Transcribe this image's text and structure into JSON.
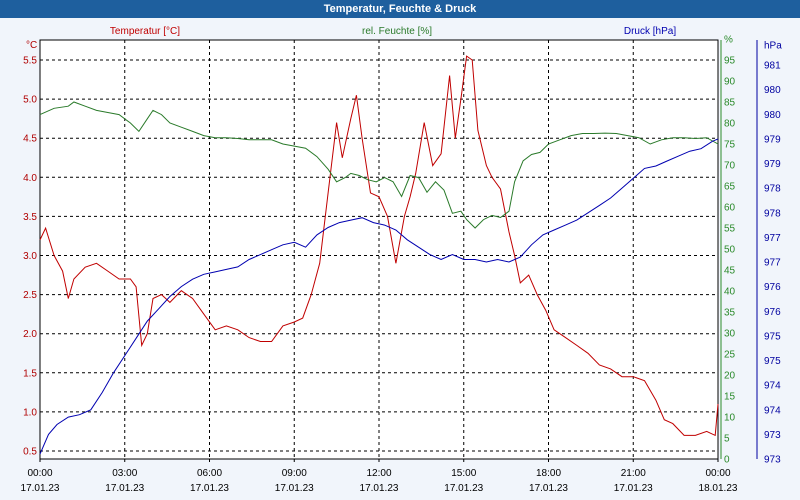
{
  "chart_data": {
    "type": "line",
    "title": "Temperatur, Feuchte & Druck",
    "x_ticks": [
      {
        "time": "00:00",
        "date": "17.01.23"
      },
      {
        "time": "03:00",
        "date": "17.01.23"
      },
      {
        "time": "06:00",
        "date": "17.01.23"
      },
      {
        "time": "09:00",
        "date": "17.01.23"
      },
      {
        "time": "12:00",
        "date": "17.01.23"
      },
      {
        "time": "15:00",
        "date": "17.01.23"
      },
      {
        "time": "18:00",
        "date": "17.01.23"
      },
      {
        "time": "21:00",
        "date": "17.01.23"
      },
      {
        "time": "00:00",
        "date": "18.01.23"
      }
    ],
    "x_range_hours": [
      0,
      24
    ],
    "axes": {
      "left": {
        "unit": "°C",
        "range": [
          0.5,
          5.5
        ],
        "ticks": [
          "0.5",
          "1.0",
          "1.5",
          "2.0",
          "2.5",
          "3.0",
          "3.5",
          "4.0",
          "4.5",
          "5.0",
          "5.5"
        ],
        "color": "#b00000"
      },
      "humidity": {
        "unit": "%",
        "range": [
          0,
          95
        ],
        "ticks": [
          "0",
          "5",
          "10",
          "15",
          "20",
          "25",
          "30",
          "35",
          "40",
          "45",
          "50",
          "55",
          "60",
          "65",
          "70",
          "75",
          "80",
          "85",
          "90",
          "95",
          "%"
        ],
        "color": "#2a8a2a"
      },
      "pressure": {
        "unit": "hPa",
        "range": [
          973,
          981
        ],
        "ticks": [
          "973",
          "973",
          "974",
          "974",
          "975",
          "975",
          "976",
          "976",
          "977",
          "977",
          "978",
          "978",
          "979",
          "979",
          "980",
          "980",
          "981",
          "hPa"
        ],
        "color": "#0000a0"
      }
    },
    "series": [
      {
        "name": "Temperatur [°C]",
        "color": "#c00000",
        "points": [
          [
            0,
            3.2
          ],
          [
            0.2,
            3.35
          ],
          [
            0.5,
            3.0
          ],
          [
            0.8,
            2.8
          ],
          [
            1.0,
            2.45
          ],
          [
            1.2,
            2.7
          ],
          [
            1.6,
            2.85
          ],
          [
            2.0,
            2.9
          ],
          [
            2.4,
            2.8
          ],
          [
            2.8,
            2.7
          ],
          [
            3.2,
            2.7
          ],
          [
            3.4,
            2.6
          ],
          [
            3.6,
            1.85
          ],
          [
            3.8,
            2.0
          ],
          [
            4.0,
            2.45
          ],
          [
            4.3,
            2.5
          ],
          [
            4.6,
            2.4
          ],
          [
            5.0,
            2.55
          ],
          [
            5.4,
            2.45
          ],
          [
            5.8,
            2.25
          ],
          [
            6.2,
            2.05
          ],
          [
            6.6,
            2.1
          ],
          [
            7.0,
            2.05
          ],
          [
            7.4,
            1.95
          ],
          [
            7.8,
            1.9
          ],
          [
            8.2,
            1.9
          ],
          [
            8.6,
            2.1
          ],
          [
            9.0,
            2.15
          ],
          [
            9.3,
            2.2
          ],
          [
            9.6,
            2.5
          ],
          [
            9.9,
            2.9
          ],
          [
            10.2,
            3.8
          ],
          [
            10.5,
            4.7
          ],
          [
            10.7,
            4.25
          ],
          [
            11.0,
            4.75
          ],
          [
            11.2,
            5.05
          ],
          [
            11.4,
            4.5
          ],
          [
            11.7,
            3.8
          ],
          [
            12.0,
            3.75
          ],
          [
            12.3,
            3.5
          ],
          [
            12.6,
            2.9
          ],
          [
            12.9,
            3.5
          ],
          [
            13.1,
            3.75
          ],
          [
            13.3,
            4.05
          ],
          [
            13.6,
            4.7
          ],
          [
            13.9,
            4.15
          ],
          [
            14.2,
            4.3
          ],
          [
            14.5,
            5.3
          ],
          [
            14.7,
            4.5
          ],
          [
            14.9,
            5.0
          ],
          [
            15.1,
            5.55
          ],
          [
            15.3,
            5.5
          ],
          [
            15.5,
            4.6
          ],
          [
            15.8,
            4.15
          ],
          [
            16.0,
            4.0
          ],
          [
            16.3,
            3.85
          ],
          [
            16.6,
            3.3
          ],
          [
            16.8,
            3.0
          ],
          [
            17.0,
            2.65
          ],
          [
            17.3,
            2.75
          ],
          [
            17.6,
            2.5
          ],
          [
            17.9,
            2.3
          ],
          [
            18.2,
            2.05
          ],
          [
            18.6,
            1.95
          ],
          [
            19.0,
            1.85
          ],
          [
            19.4,
            1.75
          ],
          [
            19.8,
            1.6
          ],
          [
            20.2,
            1.55
          ],
          [
            20.6,
            1.45
          ],
          [
            21.0,
            1.45
          ],
          [
            21.4,
            1.4
          ],
          [
            21.8,
            1.15
          ],
          [
            22.1,
            0.9
          ],
          [
            22.4,
            0.85
          ],
          [
            22.8,
            0.7
          ],
          [
            23.2,
            0.7
          ],
          [
            23.6,
            0.75
          ],
          [
            23.9,
            0.7
          ],
          [
            24.0,
            1.1
          ]
        ]
      },
      {
        "name": "rel. Feuchte [%]",
        "color": "#2a7a2a",
        "points": [
          [
            0,
            82
          ],
          [
            0.5,
            83.5
          ],
          [
            1.0,
            84
          ],
          [
            1.2,
            85
          ],
          [
            1.6,
            84
          ],
          [
            2.0,
            83
          ],
          [
            2.4,
            82.5
          ],
          [
            2.8,
            82
          ],
          [
            3.2,
            80
          ],
          [
            3.5,
            78
          ],
          [
            3.8,
            81
          ],
          [
            4.0,
            83
          ],
          [
            4.3,
            82
          ],
          [
            4.6,
            80
          ],
          [
            5.0,
            79
          ],
          [
            5.4,
            78
          ],
          [
            5.8,
            77
          ],
          [
            6.2,
            76.5
          ],
          [
            6.6,
            76.5
          ],
          [
            7.0,
            76.3
          ],
          [
            7.4,
            76
          ],
          [
            7.8,
            76
          ],
          [
            8.2,
            76
          ],
          [
            8.6,
            75
          ],
          [
            9.0,
            74.5
          ],
          [
            9.4,
            74
          ],
          [
            9.8,
            72
          ],
          [
            10.2,
            69
          ],
          [
            10.5,
            66
          ],
          [
            10.8,
            67
          ],
          [
            11.0,
            68
          ],
          [
            11.3,
            67.5
          ],
          [
            11.6,
            66.5
          ],
          [
            11.9,
            66
          ],
          [
            12.2,
            67
          ],
          [
            12.5,
            66
          ],
          [
            12.8,
            62.5
          ],
          [
            13.1,
            67.5
          ],
          [
            13.4,
            67
          ],
          [
            13.7,
            63.5
          ],
          [
            14.0,
            66
          ],
          [
            14.3,
            64
          ],
          [
            14.6,
            58.5
          ],
          [
            14.9,
            59
          ],
          [
            15.1,
            57
          ],
          [
            15.4,
            55
          ],
          [
            15.7,
            57
          ],
          [
            16.0,
            58
          ],
          [
            16.3,
            57.5
          ],
          [
            16.6,
            59
          ],
          [
            16.8,
            66
          ],
          [
            17.1,
            71
          ],
          [
            17.4,
            72.5
          ],
          [
            17.7,
            73
          ],
          [
            18.0,
            75
          ],
          [
            18.4,
            76
          ],
          [
            18.8,
            77
          ],
          [
            19.2,
            77.5
          ],
          [
            19.6,
            77.5
          ],
          [
            20.0,
            77.6
          ],
          [
            20.4,
            77.5
          ],
          [
            20.8,
            77
          ],
          [
            21.2,
            76.5
          ],
          [
            21.6,
            75
          ],
          [
            22.0,
            76
          ],
          [
            22.4,
            76.5
          ],
          [
            22.8,
            76.5
          ],
          [
            23.2,
            76.3
          ],
          [
            23.6,
            76.5
          ],
          [
            24.0,
            75
          ]
        ]
      },
      {
        "name": "Druck [hPa]",
        "color": "#0000b0",
        "points": [
          [
            0,
            973.1
          ],
          [
            0.3,
            973.5
          ],
          [
            0.6,
            973.7
          ],
          [
            1.0,
            973.85
          ],
          [
            1.4,
            973.9
          ],
          [
            1.8,
            974.0
          ],
          [
            2.2,
            974.35
          ],
          [
            2.6,
            974.75
          ],
          [
            3.0,
            975.1
          ],
          [
            3.4,
            975.45
          ],
          [
            3.8,
            975.8
          ],
          [
            4.2,
            976.05
          ],
          [
            4.6,
            976.3
          ],
          [
            5.0,
            976.5
          ],
          [
            5.4,
            976.65
          ],
          [
            5.8,
            976.75
          ],
          [
            6.2,
            976.8
          ],
          [
            6.6,
            976.85
          ],
          [
            7.0,
            976.9
          ],
          [
            7.4,
            977.05
          ],
          [
            7.8,
            977.15
          ],
          [
            8.2,
            977.25
          ],
          [
            8.6,
            977.35
          ],
          [
            9.0,
            977.4
          ],
          [
            9.4,
            977.3
          ],
          [
            9.8,
            977.55
          ],
          [
            10.2,
            977.7
          ],
          [
            10.6,
            977.8
          ],
          [
            11.0,
            977.85
          ],
          [
            11.4,
            977.9
          ],
          [
            11.8,
            977.8
          ],
          [
            12.2,
            977.75
          ],
          [
            12.6,
            977.65
          ],
          [
            13.0,
            977.45
          ],
          [
            13.4,
            977.3
          ],
          [
            13.8,
            977.15
          ],
          [
            14.2,
            977.05
          ],
          [
            14.6,
            977.15
          ],
          [
            15.0,
            977.05
          ],
          [
            15.4,
            977.05
          ],
          [
            15.8,
            977.0
          ],
          [
            16.2,
            977.05
          ],
          [
            16.6,
            977.0
          ],
          [
            17.0,
            977.1
          ],
          [
            17.4,
            977.35
          ],
          [
            17.8,
            977.55
          ],
          [
            18.2,
            977.65
          ],
          [
            18.6,
            977.75
          ],
          [
            19.0,
            977.85
          ],
          [
            19.4,
            978.0
          ],
          [
            19.8,
            978.15
          ],
          [
            20.2,
            978.3
          ],
          [
            20.6,
            978.5
          ],
          [
            21.0,
            978.7
          ],
          [
            21.4,
            978.9
          ],
          [
            21.8,
            978.95
          ],
          [
            22.2,
            979.05
          ],
          [
            22.6,
            979.15
          ],
          [
            23.0,
            979.25
          ],
          [
            23.4,
            979.3
          ],
          [
            23.8,
            979.45
          ],
          [
            24.0,
            979.5
          ]
        ]
      }
    ],
    "grid": true
  }
}
